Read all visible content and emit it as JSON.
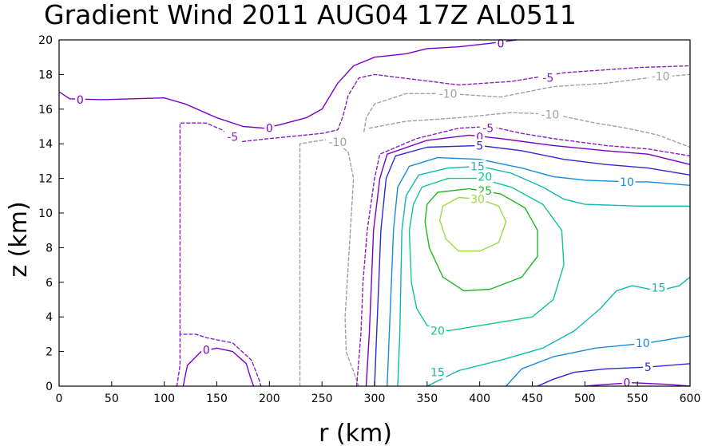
{
  "chart_data": {
    "type": "contour",
    "title": "Gradient Wind 2011 AUG04 17Z  AL0511",
    "xlabel": "r (km)",
    "ylabel": "z (km)",
    "xlim": [
      0,
      600
    ],
    "ylim": [
      0,
      20
    ],
    "xticks": [
      0,
      50,
      100,
      150,
      200,
      250,
      300,
      350,
      400,
      450,
      500,
      550,
      600
    ],
    "yticks": [
      0,
      2,
      4,
      6,
      8,
      10,
      12,
      14,
      16,
      18,
      20
    ],
    "contours": [
      {
        "level": -10,
        "label": "-10",
        "color": "#a0a0a0",
        "dashed": true,
        "points": [
          [
            229,
            0
          ],
          [
            229,
            14
          ],
          [
            260,
            14.3
          ],
          [
            275,
            13.5
          ],
          [
            280,
            12
          ],
          [
            278,
            10
          ],
          [
            275,
            7
          ],
          [
            272,
            4
          ],
          [
            273,
            2
          ],
          [
            285,
            0
          ]
        ],
        "labels": [
          {
            "x": 265,
            "y": 14.1
          }
        ]
      },
      {
        "level": -10,
        "label": "-10",
        "color": "#a0a0a0",
        "dashed": true,
        "points": [
          [
            290,
            14.7
          ],
          [
            292,
            15.5
          ],
          [
            300,
            16.3
          ],
          [
            330,
            16.9
          ],
          [
            370,
            16.9
          ],
          [
            420,
            16.7
          ],
          [
            470,
            17.3
          ],
          [
            520,
            17.5
          ],
          [
            560,
            17.8
          ],
          [
            600,
            18
          ]
        ],
        "labels": [
          {
            "x": 370,
            "y": 16.9
          },
          {
            "x": 572,
            "y": 17.9
          }
        ]
      },
      {
        "level": -10,
        "label": "-10",
        "color": "#a0a0a0",
        "dashed": true,
        "points": [
          [
            295,
            14.9
          ],
          [
            330,
            15.3
          ],
          [
            380,
            15.5
          ],
          [
            430,
            15.8
          ],
          [
            470,
            15.7
          ],
          [
            510,
            15.2
          ],
          [
            540,
            14.9
          ],
          [
            570,
            14.5
          ],
          [
            600,
            13.8
          ]
        ],
        "labels": [
          {
            "x": 467,
            "y": 15.7
          }
        ]
      },
      {
        "level": -5,
        "label": "-5",
        "color": "#8a1fbf",
        "dashed": true,
        "points": [
          [
            112,
            0
          ],
          [
            115,
            1.2
          ],
          [
            115,
            3
          ],
          [
            130,
            3
          ],
          [
            140,
            2.8
          ],
          [
            165,
            2.5
          ],
          [
            183,
            1.5
          ],
          [
            190,
            0.4
          ],
          [
            192,
            0
          ]
        ],
        "labels": []
      },
      {
        "level": -5,
        "label": "-5",
        "color": "#8a1fbf",
        "dashed": true,
        "points": [
          [
            115,
            3
          ],
          [
            115,
            15.2
          ],
          [
            140,
            15.2
          ],
          [
            155,
            14.8
          ],
          [
            170,
            14.1
          ],
          [
            200,
            14.3
          ],
          [
            250,
            14.6
          ],
          [
            265,
            14.8
          ],
          [
            270,
            15.6
          ],
          [
            275,
            16.8
          ],
          [
            285,
            17.8
          ],
          [
            300,
            18
          ],
          [
            340,
            17.7
          ],
          [
            380,
            17.4
          ],
          [
            430,
            17.6
          ],
          [
            480,
            18.1
          ],
          [
            550,
            18.4
          ],
          [
            600,
            18.5
          ]
        ],
        "labels": [
          {
            "x": 165,
            "y": 14.4
          },
          {
            "x": 465,
            "y": 17.8
          }
        ]
      },
      {
        "level": -5,
        "label": "-5",
        "color": "#8a1fbf",
        "dashed": true,
        "points": [
          [
            283,
            0
          ],
          [
            287,
            3
          ],
          [
            289,
            6
          ],
          [
            293,
            9
          ],
          [
            300,
            12
          ],
          [
            305,
            13.4
          ],
          [
            340,
            14.3
          ],
          [
            380,
            14.9
          ],
          [
            410,
            15
          ],
          [
            440,
            14.6
          ],
          [
            470,
            14.3
          ],
          [
            520,
            13.9
          ],
          [
            560,
            13.7
          ],
          [
            600,
            13.3
          ]
        ],
        "labels": [
          {
            "x": 408,
            "y": 14.9
          }
        ]
      },
      {
        "level": 0,
        "label": "0",
        "color": "#7a00c8",
        "dashed": false,
        "points": [
          [
            0,
            17
          ],
          [
            10,
            16.6
          ],
          [
            40,
            16.55
          ],
          [
            100,
            16.65
          ],
          [
            120,
            16.3
          ],
          [
            150,
            15.5
          ],
          [
            175,
            15
          ],
          [
            195,
            14.9
          ],
          [
            210,
            15.1
          ],
          [
            235,
            15.5
          ],
          [
            250,
            16
          ],
          [
            265,
            17.5
          ],
          [
            280,
            18.5
          ],
          [
            300,
            19
          ],
          [
            330,
            19.2
          ],
          [
            350,
            19.5
          ],
          [
            380,
            19.6
          ],
          [
            410,
            19.8
          ],
          [
            435,
            20
          ]
        ],
        "labels": [
          {
            "x": 20,
            "y": 16.55
          },
          {
            "x": 200,
            "y": 14.9
          },
          {
            "x": 420,
            "y": 19.8
          }
        ]
      },
      {
        "level": 0,
        "label": "0",
        "color": "#7a00c8",
        "dashed": false,
        "points": [
          [
            118,
            0
          ],
          [
            122,
            1.2
          ],
          [
            135,
            2
          ],
          [
            150,
            2.2
          ],
          [
            165,
            2
          ],
          [
            178,
            1.3
          ],
          [
            182,
            0.5
          ],
          [
            185,
            0
          ]
        ],
        "labels": [
          {
            "x": 140,
            "y": 2.1
          }
        ]
      },
      {
        "level": 0,
        "label": "0",
        "color": "#7a00c8",
        "dashed": false,
        "points": [
          [
            292,
            0
          ],
          [
            295,
            3
          ],
          [
            297,
            6
          ],
          [
            299,
            9
          ],
          [
            305,
            12
          ],
          [
            312,
            13.4
          ],
          [
            350,
            14.2
          ],
          [
            390,
            14.5
          ],
          [
            420,
            14.3
          ],
          [
            470,
            13.9
          ],
          [
            520,
            13.6
          ],
          [
            560,
            13.4
          ],
          [
            600,
            12.8
          ]
        ],
        "labels": [
          {
            "x": 400,
            "y": 14.4
          }
        ]
      },
      {
        "level": 0,
        "label": "0",
        "color": "#7a00c8",
        "dashed": false,
        "points": [
          [
            500,
            0
          ],
          [
            520,
            0.1
          ],
          [
            545,
            0.2
          ],
          [
            580,
            0.1
          ],
          [
            600,
            0
          ]
        ],
        "labels": [
          {
            "x": 540,
            "y": 0.2
          }
        ]
      },
      {
        "level": 5,
        "label": "5",
        "color": "#2a2ad8",
        "dashed": false,
        "points": [
          [
            300,
            0
          ],
          [
            302,
            3
          ],
          [
            304,
            6
          ],
          [
            306,
            9
          ],
          [
            311,
            12
          ],
          [
            320,
            13.3
          ],
          [
            350,
            13.8
          ],
          [
            400,
            13.9
          ],
          [
            440,
            13.6
          ],
          [
            480,
            13.1
          ],
          [
            520,
            12.8
          ],
          [
            560,
            12.6
          ],
          [
            600,
            12.2
          ]
        ],
        "labels": [
          {
            "x": 400,
            "y": 13.9
          }
        ]
      },
      {
        "level": 5,
        "label": "5",
        "color": "#2a2ad8",
        "dashed": false,
        "points": [
          [
            455,
            0
          ],
          [
            470,
            0.4
          ],
          [
            490,
            0.8
          ],
          [
            520,
            1
          ],
          [
            560,
            1.1
          ],
          [
            600,
            1.3
          ]
        ],
        "labels": [
          {
            "x": 560,
            "y": 1.1
          }
        ]
      },
      {
        "level": 10,
        "label": "10",
        "color": "#1a8ad8",
        "dashed": false,
        "points": [
          [
            312,
            0
          ],
          [
            314,
            3
          ],
          [
            316,
            6
          ],
          [
            318,
            9
          ],
          [
            322,
            11.5
          ],
          [
            333,
            12.7
          ],
          [
            360,
            13.2
          ],
          [
            400,
            13.1
          ],
          [
            440,
            12.6
          ],
          [
            470,
            12.1
          ],
          [
            500,
            11.9
          ],
          [
            540,
            11.8
          ],
          [
            560,
            11.8
          ],
          [
            600,
            11.6
          ]
        ],
        "labels": [
          {
            "x": 540,
            "y": 11.8
          }
        ]
      },
      {
        "level": 10,
        "label": "10",
        "color": "#1a8ad8",
        "dashed": false,
        "points": [
          [
            425,
            0
          ],
          [
            440,
            1
          ],
          [
            470,
            1.7
          ],
          [
            510,
            2.2
          ],
          [
            560,
            2.5
          ],
          [
            600,
            2.9
          ]
        ],
        "labels": [
          {
            "x": 555,
            "y": 2.5
          }
        ]
      },
      {
        "level": 15,
        "label": "15",
        "color": "#10b8b0",
        "dashed": false,
        "points": [
          [
            322,
            0
          ],
          [
            324,
            3
          ],
          [
            325,
            6
          ],
          [
            326,
            9
          ],
          [
            330,
            11
          ],
          [
            342,
            12.2
          ],
          [
            370,
            12.6
          ],
          [
            400,
            12.7
          ],
          [
            430,
            12.3
          ],
          [
            460,
            11.5
          ],
          [
            480,
            10.8
          ],
          [
            500,
            10.5
          ],
          [
            550,
            10.4
          ],
          [
            600,
            10.4
          ]
        ],
        "labels": [
          {
            "x": 398,
            "y": 12.7
          }
        ]
      },
      {
        "level": 15,
        "label": "15",
        "color": "#10b8b0",
        "dashed": false,
        "points": [
          [
            350,
            0
          ],
          [
            380,
            0.9
          ],
          [
            420,
            1.5
          ],
          [
            460,
            2.2
          ],
          [
            490,
            3.2
          ],
          [
            515,
            4.5
          ],
          [
            530,
            5.5
          ],
          [
            545,
            5.8
          ],
          [
            570,
            5.5
          ],
          [
            590,
            5.8
          ],
          [
            600,
            6.3
          ]
        ],
        "labels": [
          {
            "x": 360,
            "y": 0.8
          },
          {
            "x": 570,
            "y": 5.7
          }
        ]
      },
      {
        "level": 20,
        "label": "20",
        "color": "#10c88a",
        "dashed": false,
        "points": [
          [
            350,
            3.5
          ],
          [
            340,
            4.5
          ],
          [
            335,
            6
          ],
          [
            333,
            9
          ],
          [
            337,
            10.5
          ],
          [
            345,
            11.5
          ],
          [
            370,
            12
          ],
          [
            400,
            12
          ],
          [
            430,
            11.5
          ],
          [
            460,
            10.5
          ],
          [
            478,
            9
          ],
          [
            480,
            7
          ],
          [
            470,
            5
          ],
          [
            450,
            4
          ],
          [
            400,
            3.5
          ],
          [
            370,
            3.2
          ],
          [
            350,
            3.5
          ]
        ],
        "labels": [
          {
            "x": 405,
            "y": 12.1
          },
          {
            "x": 360,
            "y": 3.2
          }
        ]
      },
      {
        "level": 25,
        "label": "25",
        "color": "#20b820",
        "dashed": false,
        "points": [
          [
            385,
            5.5
          ],
          [
            365,
            6.3
          ],
          [
            352,
            8
          ],
          [
            348,
            9.5
          ],
          [
            350,
            10.5
          ],
          [
            360,
            11.2
          ],
          [
            390,
            11.4
          ],
          [
            420,
            11.1
          ],
          [
            443,
            10.3
          ],
          [
            455,
            9
          ],
          [
            455,
            7.5
          ],
          [
            440,
            6.3
          ],
          [
            410,
            5.6
          ],
          [
            385,
            5.5
          ]
        ],
        "labels": [
          {
            "x": 405,
            "y": 11.3
          }
        ]
      },
      {
        "level": 30,
        "label": "30",
        "color": "#9adc40",
        "dashed": false,
        "points": [
          [
            380,
            7.8
          ],
          [
            368,
            8.5
          ],
          [
            362,
            9.6
          ],
          [
            365,
            10.4
          ],
          [
            380,
            10.9
          ],
          [
            400,
            10.8
          ],
          [
            418,
            10.4
          ],
          [
            425,
            9.5
          ],
          [
            418,
            8.3
          ],
          [
            400,
            7.8
          ],
          [
            380,
            7.8
          ]
        ],
        "labels": [
          {
            "x": 398,
            "y": 10.8
          }
        ]
      }
    ]
  }
}
